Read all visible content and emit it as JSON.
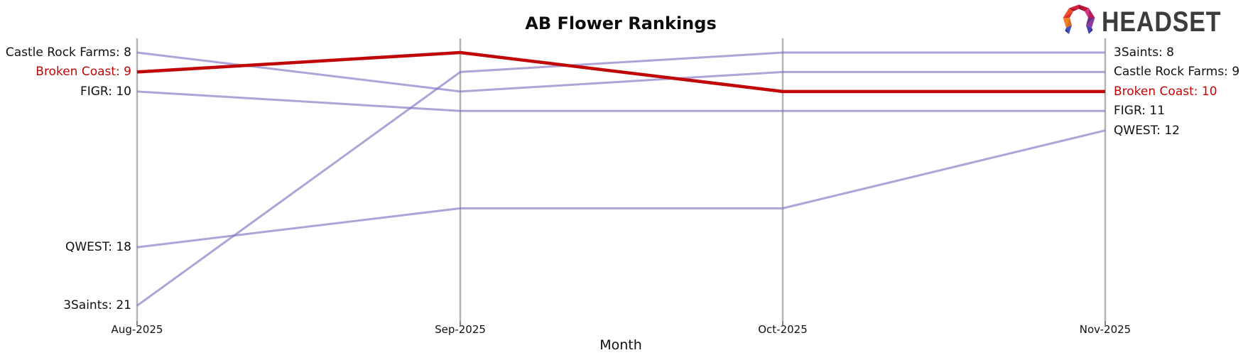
{
  "title": "AB Flower Rankings",
  "logo": {
    "text": "HEADSET"
  },
  "colors": {
    "line_default": "#7e6cc0",
    "line_highlight": "#c00606",
    "label_highlight": "#c00606",
    "label_default": "#111111",
    "axis": "#b3b3b3",
    "tick": "#333333"
  },
  "chart_data": {
    "type": "line",
    "subtype": "bump-ranking",
    "title": "AB Flower Rankings",
    "xlabel": "Month",
    "x": [
      "Aug-2025",
      "Sep-2025",
      "Oct-2025",
      "Nov-2025"
    ],
    "y_axis": {
      "inverted": true,
      "unit": "rank",
      "approx_visible_range": [
        7,
        22
      ],
      "gridlines": false
    },
    "legend": "none (direct endpoint labels)",
    "series": [
      {
        "name": "Castle Rock Farms",
        "values": [
          8,
          10,
          9,
          9
        ],
        "highlight": false
      },
      {
        "name": "Broken Coast",
        "values": [
          9,
          8,
          10,
          10
        ],
        "highlight": true
      },
      {
        "name": "FIGR",
        "values": [
          10,
          11,
          11,
          11
        ],
        "highlight": false
      },
      {
        "name": "QWEST",
        "values": [
          18,
          16,
          16,
          12
        ],
        "highlight": false
      },
      {
        "name": "3Saints",
        "values": [
          21,
          9,
          8,
          8
        ],
        "highlight": false
      }
    ],
    "left_labels": [
      "Castle Rock Farms: 8",
      "Broken Coast: 9",
      "FIGR: 10",
      "QWEST: 18",
      "3Saints: 21"
    ],
    "right_labels": [
      "3Saints: 8",
      "Castle Rock Farms: 9",
      "Broken Coast: 10",
      "FIGR: 11",
      "QWEST: 12"
    ]
  }
}
